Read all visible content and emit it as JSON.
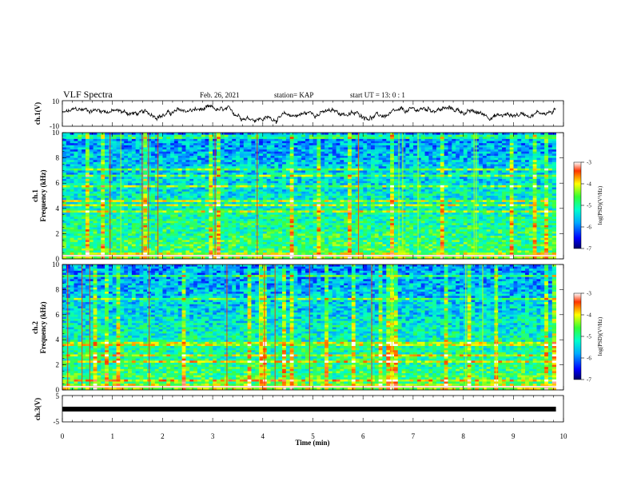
{
  "header": {
    "title": "VLF Spectra",
    "date": "Feb. 26, 2021",
    "station": "station= KAP",
    "start_time": "start UT = 13: 0 : 1"
  },
  "chart_data": [
    {
      "type": "line",
      "name": "ch1-waveform",
      "ylabel": "ch.1(V)",
      "ylim": [
        -10,
        10
      ],
      "yticks": [
        "10",
        "-10"
      ],
      "xlim": [
        0,
        10
      ],
      "description_of_series": "noisy waveform oscillating roughly between -5 and 8 V",
      "color": "#000000"
    },
    {
      "type": "heatmap",
      "name": "ch1-spectrogram",
      "ylabel": "ch.1\nFrequency (kHz)",
      "ylim": [
        0,
        10
      ],
      "yticks": [
        "0",
        "2",
        "4",
        "6",
        "8",
        "10"
      ],
      "xlim": [
        0,
        9.85
      ],
      "colorbar": {
        "label": "log(PSD)(V²/Hz)",
        "range": [
          -7,
          -3
        ],
        "ticks": [
          "-3",
          "-4",
          "-5",
          "-6",
          "-7"
        ]
      }
    },
    {
      "type": "heatmap",
      "name": "ch2-spectrogram",
      "ylabel": "ch.2\nFrequency (kHz)",
      "ylim": [
        0,
        10
      ],
      "yticks": [
        "0",
        "2",
        "4",
        "6",
        "8",
        "10"
      ],
      "xlim": [
        0,
        9.85
      ],
      "colorbar": {
        "label": "log(PSD)(V²/Hz)",
        "range": [
          -7,
          -3
        ],
        "ticks": [
          "-3",
          "-4",
          "-5",
          "-6",
          "-7"
        ]
      }
    },
    {
      "type": "line",
      "name": "ch3-signal",
      "ylabel": "ch.3(V)",
      "ylim": [
        -5,
        5
      ],
      "yticks": [
        "5",
        "-5"
      ],
      "xlabel": "Time (min)",
      "xlim": [
        0,
        10
      ],
      "xticks": [
        "0",
        "1",
        "2",
        "3",
        "4",
        "5",
        "6",
        "7",
        "8",
        "9",
        "10"
      ],
      "series": [
        {
          "name": "ch3",
          "value_approx": -1,
          "x_end": 9.85
        }
      ],
      "color": "#000000"
    }
  ],
  "labels": {
    "ch1_v": "ch.1(V)",
    "ch1_line1": "ch.1",
    "ch1_line2": "Frequency (kHz)",
    "ch2_line1": "ch.2",
    "ch2_line2": "Frequency (kHz)",
    "ch3_v": "ch.3(V)",
    "xlabel": "Time (min)",
    "cb_label": "log(PSD)(V²/Hz)"
  }
}
